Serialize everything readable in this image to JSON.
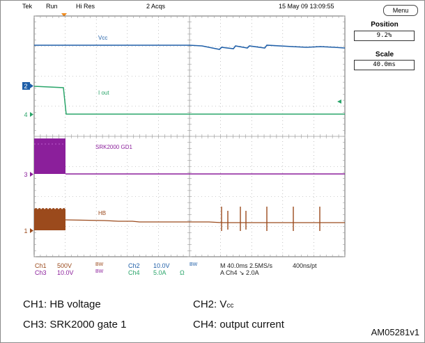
{
  "header": {
    "brand": "Tek",
    "run_state": "Run",
    "acq_mode": "Hi Res",
    "acq_count": "2 Acqs",
    "datetime": "15 May 09 13:09:55"
  },
  "side_panel": {
    "menu_label": "Menu",
    "position_label": "Position",
    "position_value": "9.2%",
    "scale_label": "Scale",
    "scale_value": "40.0ms"
  },
  "channel_markers": {
    "ch2": "2",
    "ch4": "4",
    "ch3": "3",
    "ch1": "1"
  },
  "trace_labels": {
    "vcc": "Vcc",
    "iout": "I out",
    "gd1": "SRK2000 GD1",
    "hb": "HB"
  },
  "status_bar": {
    "ch1_name": "Ch1",
    "ch1_scale": "500V",
    "ch1_bw": "BW",
    "ch2_name": "Ch2",
    "ch2_scale": "10.0V",
    "ch2_bw": "BW",
    "ch3_name": "Ch3",
    "ch3_scale": "10.0V",
    "ch3_bw": "BW",
    "ch4_name": "Ch4",
    "ch4_scale": "5.0A",
    "ch4_unit": "Ω",
    "timebase": "M 40.0ms 2.5MS/s",
    "resolution": "400ns/pt",
    "trigger": "A  Ch4  ↘  2.0A"
  },
  "caption": {
    "ch1": "CH1:  HB voltage",
    "ch2_prefix": "CH2:  V",
    "ch2_sub": "cc",
    "ch3": "CH3:  SRK2000 gate 1",
    "ch4": "CH4:  output current",
    "figure_id": "AM05281v1"
  },
  "colors": {
    "ch1": "#9b4a1c",
    "ch2": "#1f5fa8",
    "ch3": "#8b1f9b",
    "ch4": "#2aa56a",
    "grid": "#9a9a9a"
  }
}
